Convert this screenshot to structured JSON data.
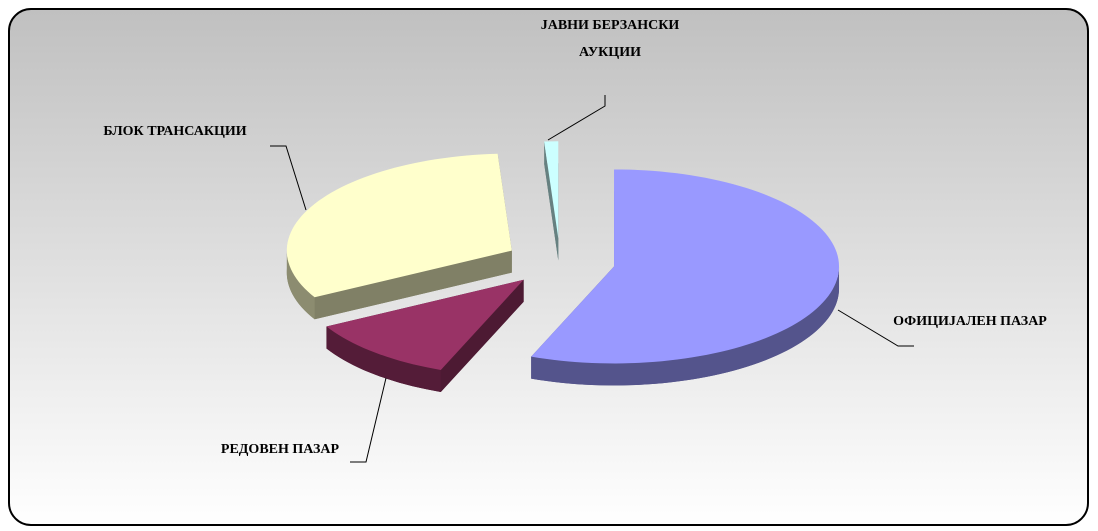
{
  "chart_data": {
    "type": "pie3d",
    "categories": [
      "ОФИЦИЈАЛЕН ПАЗАР",
      "РЕДОВЕН ПАЗАР",
      "БЛОК ТРАНСАКЦИИ",
      "ЈАВНИ БЕРЗАНСКИ АУКЦИИ"
    ],
    "values": [
      56,
      11,
      32,
      1
    ],
    "colors": [
      "#9999ff",
      "#993366",
      "#ffffcc",
      "#ccffff"
    ]
  }
}
